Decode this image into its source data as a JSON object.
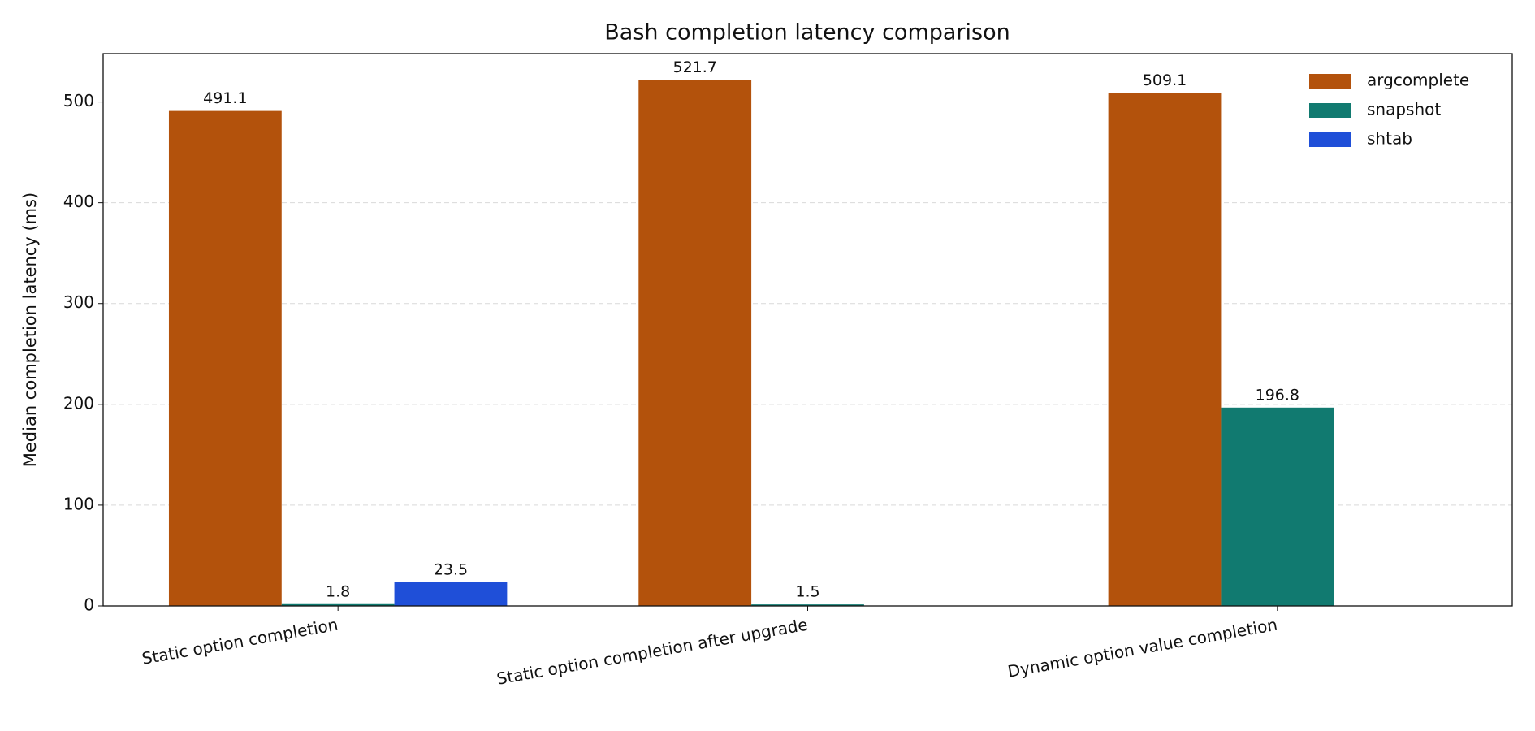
{
  "chart_data": {
    "type": "bar",
    "title": "Bash completion latency comparison",
    "y_label": "Median completion latency (ms)",
    "categories": [
      "Static option completion",
      "Static option completion after upgrade",
      "Dynamic option value completion"
    ],
    "series": [
      {
        "name": "argcomplete",
        "color": "#b3520c",
        "values": [
          491.1,
          521.7,
          509.1
        ]
      },
      {
        "name": "snapshot",
        "color": "#117a70",
        "values": [
          1.8,
          1.5,
          196.8
        ]
      },
      {
        "name": "shtab",
        "color": "#1f4fd8",
        "values": [
          23.5,
          null,
          null
        ]
      }
    ],
    "ylim": [
      0,
      548
    ],
    "yticks": [
      0,
      100,
      200,
      300,
      400,
      500
    ],
    "grid": true,
    "legend": "upper right"
  }
}
